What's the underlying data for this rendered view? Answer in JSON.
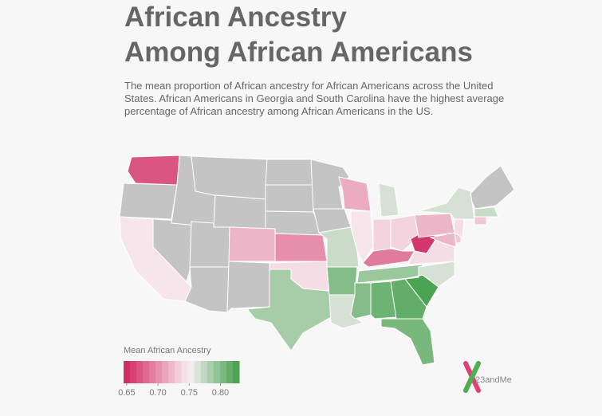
{
  "chart_data": {
    "type": "choropleth",
    "title": [
      "African Ancestry",
      "Among African Americans"
    ],
    "subtitle": "The mean proportion of African ancestry for African Americans across the United States. African Americans in Georgia and South Carolina have the highest average percentage of African ancestry among African Americans in the US.",
    "values": [
      0.67,
      0.745,
      0.72,
      0.7,
      0.74,
      0.785,
      0.77,
      0.8,
      0.765,
      0.715,
      0.745,
      0.765,
      0.735,
      0.735,
      0.69,
      0.79,
      0.8,
      0.81,
      0.815,
      0.805,
      0.825,
      0.765,
      0.74,
      0.655,
      0.72,
      0.765,
      0.72,
      0.73,
      0.74,
      0.77,
      0.73
    ],
    "no_data_color": "#c4c4c4",
    "legend": {
      "title": "Mean African Ancestry",
      "range": [
        0.645,
        0.83
      ],
      "ticks": [
        0.65,
        {
          "value": 0.7,
          "label": "0.70"
        },
        0.75,
        {
          "value": 0.8,
          "label": "0.80"
        }
      ],
      "colors": {
        "low": "#d0245e",
        "mid": "#f8f0f3",
        "high": "#3f9f48"
      },
      "mid_value": 0.75
    },
    "brand": "23andMe"
  }
}
